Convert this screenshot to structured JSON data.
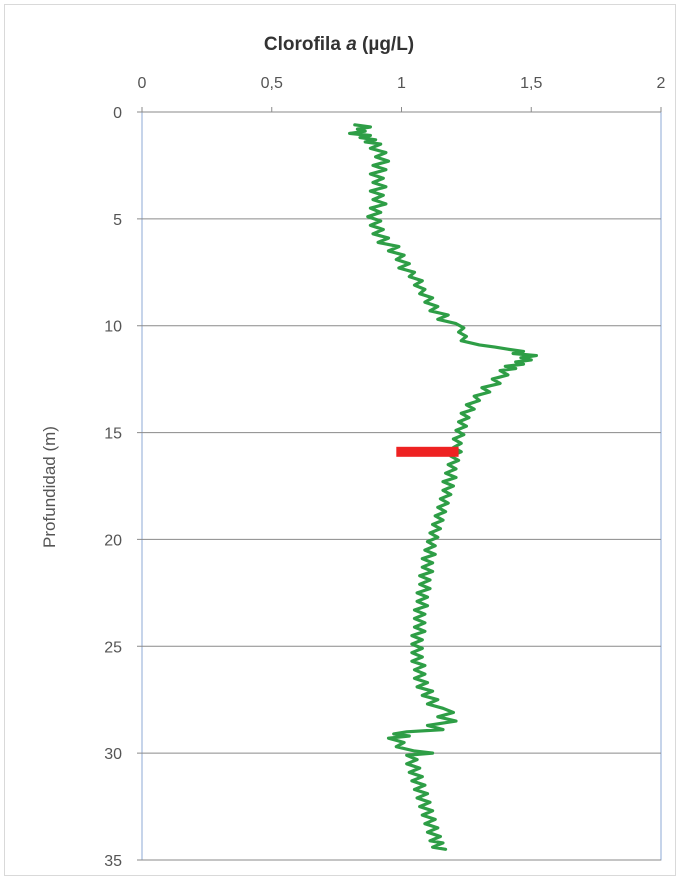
{
  "chart_data": {
    "type": "line",
    "title_prefix": "Clorofila ",
    "title_italic": "a",
    "title_suffix": " (µg/L)",
    "xlabel": "Clorofila a (µg/L)",
    "ylabel": "Profundidad (m)",
    "xlim": [
      0,
      2
    ],
    "ylim": [
      0,
      35
    ],
    "y_inverted": true,
    "x_axis_position": "top",
    "x_ticks": [
      "0",
      "0,5",
      "1",
      "1,5",
      "2"
    ],
    "y_ticks": [
      "0",
      "5",
      "10",
      "15",
      "20",
      "25",
      "30",
      "35"
    ],
    "grid": "horizontal",
    "series": [
      {
        "color": "#2e9e46",
        "points": [
          [
            0.82,
            0.6
          ],
          [
            0.88,
            0.7
          ],
          [
            0.83,
            0.8
          ],
          [
            0.86,
            0.9
          ],
          [
            0.8,
            1.0
          ],
          [
            0.88,
            1.1
          ],
          [
            0.84,
            1.2
          ],
          [
            0.9,
            1.3
          ],
          [
            0.86,
            1.4
          ],
          [
            0.92,
            1.5
          ],
          [
            0.88,
            1.7
          ],
          [
            0.94,
            1.9
          ],
          [
            0.9,
            2.1
          ],
          [
            0.95,
            2.3
          ],
          [
            0.89,
            2.5
          ],
          [
            0.94,
            2.7
          ],
          [
            0.88,
            2.9
          ],
          [
            0.93,
            3.1
          ],
          [
            0.89,
            3.3
          ],
          [
            0.94,
            3.5
          ],
          [
            0.88,
            3.7
          ],
          [
            0.93,
            3.9
          ],
          [
            0.89,
            4.1
          ],
          [
            0.94,
            4.3
          ],
          [
            0.88,
            4.5
          ],
          [
            0.92,
            4.7
          ],
          [
            0.87,
            4.9
          ],
          [
            0.92,
            5.1
          ],
          [
            0.88,
            5.3
          ],
          [
            0.93,
            5.5
          ],
          [
            0.89,
            5.7
          ],
          [
            0.95,
            5.9
          ],
          [
            0.91,
            6.1
          ],
          [
            0.99,
            6.3
          ],
          [
            0.95,
            6.5
          ],
          [
            1.01,
            6.7
          ],
          [
            0.98,
            6.9
          ],
          [
            1.03,
            7.1
          ],
          [
            0.99,
            7.3
          ],
          [
            1.05,
            7.5
          ],
          [
            1.03,
            7.7
          ],
          [
            1.08,
            7.9
          ],
          [
            1.05,
            8.1
          ],
          [
            1.09,
            8.3
          ],
          [
            1.07,
            8.5
          ],
          [
            1.12,
            8.7
          ],
          [
            1.09,
            8.9
          ],
          [
            1.14,
            9.1
          ],
          [
            1.11,
            9.3
          ],
          [
            1.18,
            9.5
          ],
          [
            1.14,
            9.7
          ],
          [
            1.21,
            9.9
          ],
          [
            1.24,
            10.1
          ],
          [
            1.22,
            10.3
          ],
          [
            1.25,
            10.5
          ],
          [
            1.23,
            10.7
          ],
          [
            1.3,
            10.9
          ],
          [
            1.36,
            11.0
          ],
          [
            1.41,
            11.1
          ],
          [
            1.47,
            11.2
          ],
          [
            1.43,
            11.3
          ],
          [
            1.52,
            11.4
          ],
          [
            1.46,
            11.5
          ],
          [
            1.5,
            11.6
          ],
          [
            1.44,
            11.7
          ],
          [
            1.47,
            11.8
          ],
          [
            1.4,
            11.9
          ],
          [
            1.44,
            12.0
          ],
          [
            1.38,
            12.1
          ],
          [
            1.41,
            12.3
          ],
          [
            1.35,
            12.5
          ],
          [
            1.38,
            12.7
          ],
          [
            1.31,
            12.9
          ],
          [
            1.34,
            13.1
          ],
          [
            1.28,
            13.3
          ],
          [
            1.3,
            13.5
          ],
          [
            1.25,
            13.7
          ],
          [
            1.28,
            13.9
          ],
          [
            1.23,
            14.1
          ],
          [
            1.26,
            14.3
          ],
          [
            1.22,
            14.5
          ],
          [
            1.25,
            14.7
          ],
          [
            1.21,
            14.9
          ],
          [
            1.24,
            15.1
          ],
          [
            1.2,
            15.3
          ],
          [
            1.23,
            15.5
          ],
          [
            1.2,
            15.7
          ],
          [
            1.23,
            15.9
          ],
          [
            1.19,
            16.1
          ],
          [
            1.22,
            16.3
          ],
          [
            1.18,
            16.5
          ],
          [
            1.21,
            16.7
          ],
          [
            1.17,
            16.9
          ],
          [
            1.21,
            17.1
          ],
          [
            1.16,
            17.3
          ],
          [
            1.2,
            17.5
          ],
          [
            1.16,
            17.7
          ],
          [
            1.19,
            17.9
          ],
          [
            1.15,
            18.1
          ],
          [
            1.18,
            18.3
          ],
          [
            1.14,
            18.5
          ],
          [
            1.17,
            18.7
          ],
          [
            1.13,
            18.9
          ],
          [
            1.16,
            19.1
          ],
          [
            1.12,
            19.3
          ],
          [
            1.15,
            19.5
          ],
          [
            1.11,
            19.7
          ],
          [
            1.14,
            19.9
          ],
          [
            1.1,
            20.1
          ],
          [
            1.13,
            20.3
          ],
          [
            1.09,
            20.5
          ],
          [
            1.13,
            20.7
          ],
          [
            1.08,
            20.9
          ],
          [
            1.12,
            21.1
          ],
          [
            1.08,
            21.3
          ],
          [
            1.12,
            21.5
          ],
          [
            1.07,
            21.7
          ],
          [
            1.11,
            21.9
          ],
          [
            1.07,
            22.1
          ],
          [
            1.11,
            22.3
          ],
          [
            1.06,
            22.5
          ],
          [
            1.1,
            22.7
          ],
          [
            1.06,
            22.9
          ],
          [
            1.1,
            23.1
          ],
          [
            1.05,
            23.3
          ],
          [
            1.09,
            23.5
          ],
          [
            1.05,
            23.7
          ],
          [
            1.09,
            23.9
          ],
          [
            1.05,
            24.1
          ],
          [
            1.09,
            24.3
          ],
          [
            1.04,
            24.5
          ],
          [
            1.08,
            24.7
          ],
          [
            1.04,
            24.9
          ],
          [
            1.08,
            25.1
          ],
          [
            1.04,
            25.3
          ],
          [
            1.08,
            25.5
          ],
          [
            1.04,
            25.7
          ],
          [
            1.09,
            25.9
          ],
          [
            1.05,
            26.1
          ],
          [
            1.09,
            26.3
          ],
          [
            1.05,
            26.5
          ],
          [
            1.1,
            26.7
          ],
          [
            1.06,
            26.9
          ],
          [
            1.12,
            27.1
          ],
          [
            1.08,
            27.3
          ],
          [
            1.14,
            27.5
          ],
          [
            1.1,
            27.7
          ],
          [
            1.16,
            27.9
          ],
          [
            1.2,
            28.1
          ],
          [
            1.14,
            28.3
          ],
          [
            1.21,
            28.5
          ],
          [
            1.1,
            28.7
          ],
          [
            1.16,
            28.9
          ],
          [
            1.02,
            29.0
          ],
          [
            0.97,
            29.1
          ],
          [
            1.03,
            29.2
          ],
          [
            0.95,
            29.3
          ],
          [
            1.01,
            29.5
          ],
          [
            0.98,
            29.7
          ],
          [
            1.05,
            29.9
          ],
          [
            1.12,
            30.0
          ],
          [
            1.02,
            30.1
          ],
          [
            1.06,
            30.3
          ],
          [
            1.02,
            30.5
          ],
          [
            1.07,
            30.7
          ],
          [
            1.03,
            30.9
          ],
          [
            1.08,
            31.1
          ],
          [
            1.04,
            31.3
          ],
          [
            1.09,
            31.5
          ],
          [
            1.05,
            31.7
          ],
          [
            1.1,
            31.9
          ],
          [
            1.06,
            32.1
          ],
          [
            1.11,
            32.3
          ],
          [
            1.07,
            32.5
          ],
          [
            1.12,
            32.7
          ],
          [
            1.08,
            32.9
          ],
          [
            1.13,
            33.1
          ],
          [
            1.09,
            33.3
          ],
          [
            1.14,
            33.5
          ],
          [
            1.1,
            33.7
          ],
          [
            1.15,
            33.9
          ],
          [
            1.11,
            34.1
          ],
          [
            1.16,
            34.2
          ],
          [
            1.12,
            34.4
          ],
          [
            1.17,
            34.5
          ]
        ]
      }
    ],
    "marker": {
      "color": "#ee2222",
      "x_start": 0.98,
      "x_end": 1.22,
      "y": 15.9
    }
  }
}
